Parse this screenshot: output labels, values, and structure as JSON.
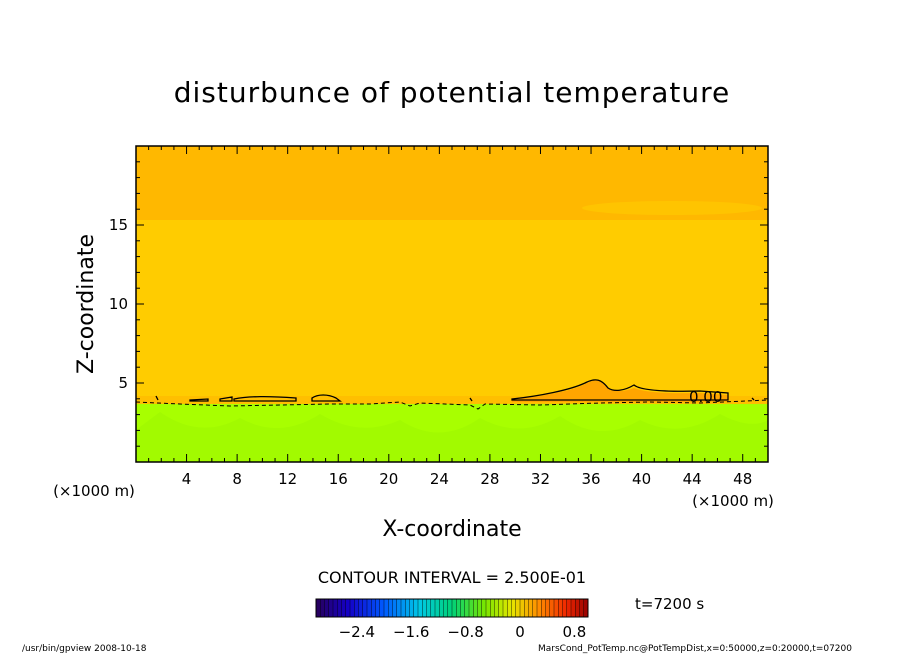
{
  "chart_data": {
    "type": "heatmap",
    "title": "disturbunce of potential temperature",
    "xlabel": "X-coordinate",
    "ylabel": "Z-coordinate",
    "x_unit": "(×1000 m)",
    "y_unit": "(×1000 m)",
    "xlim": [
      0,
      50
    ],
    "ylim": [
      0,
      20
    ],
    "xticks": [
      4,
      8,
      12,
      16,
      20,
      24,
      28,
      32,
      36,
      40,
      44,
      48
    ],
    "yticks": [
      5,
      10,
      15
    ],
    "contour_interval": "CONTOUR INTERVAL = 2.500E-01",
    "contour_labels": [
      "0.00"
    ],
    "colorbar": {
      "ticks": [
        -2.4,
        -1.6,
        -0.8,
        0,
        0.8
      ],
      "tick_labels": [
        "-2.4",
        "-1.6",
        "-0.8",
        "0",
        "0.8"
      ],
      "range": [
        -3.0,
        1.0
      ]
    },
    "time_label": "t=7200 s",
    "regions": [
      {
        "zmin": 0,
        "zmax": 3.6,
        "value": -0.6,
        "color": "#a8ff00"
      },
      {
        "zmin": 3.6,
        "zmax": 15.3,
        "value": 0.2,
        "color": "#ffcc00"
      },
      {
        "zmin": 15.3,
        "zmax": 20,
        "value": 0.3,
        "color": "#ffb800"
      }
    ]
  },
  "footer": {
    "left": "/usr/bin/gpview   2008-10-18",
    "right": "MarsCond_PotTemp.nc@PotTempDist,x=0:50000,z=0:20000,t=07200"
  }
}
